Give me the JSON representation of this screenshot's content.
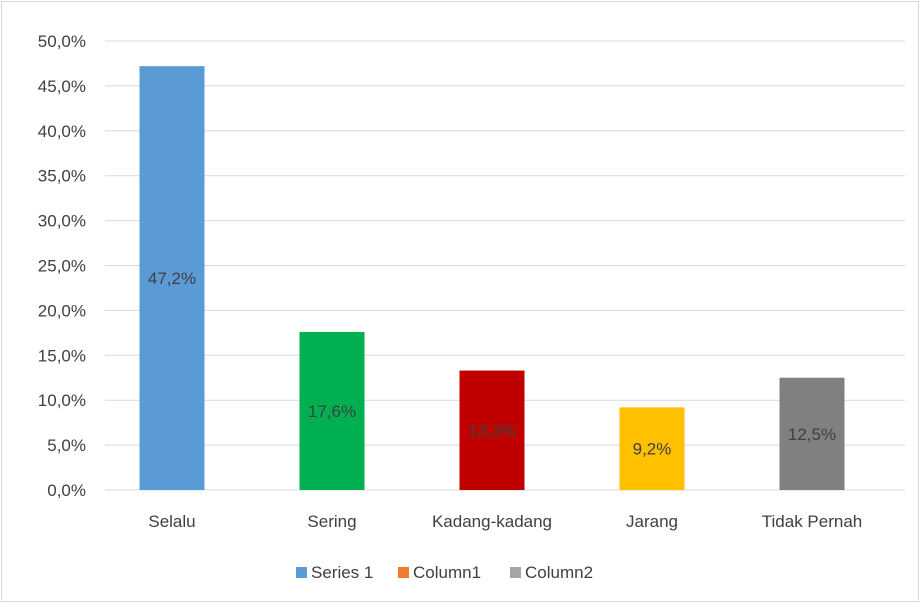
{
  "chart_data": {
    "type": "bar",
    "title": "",
    "xlabel": "",
    "ylabel": "",
    "categories": [
      "Selalu",
      "Sering",
      "Kadang-kadang",
      "Jarang",
      "Tidak Pernah"
    ],
    "values": [
      47.2,
      17.6,
      13.3,
      9.2,
      12.5
    ],
    "data_labels": [
      "47,2%",
      "17,6%",
      "13,3%",
      "9,2%",
      "12,5%"
    ],
    "bar_colors": [
      "#5b9bd5",
      "#00b050",
      "#c00000",
      "#ffc000",
      "#808080"
    ],
    "ylim": [
      0,
      50
    ],
    "ytick_values": [
      0,
      5,
      10,
      15,
      20,
      25,
      30,
      35,
      40,
      45,
      50
    ],
    "ytick_labels": [
      "0,0%",
      "5,0%",
      "10,0%",
      "15,0%",
      "20,0%",
      "25,0%",
      "30,0%",
      "35,0%",
      "40,0%",
      "45,0%",
      "50,0%"
    ],
    "grid": true,
    "legend": {
      "placement": "bottom",
      "entries": [
        {
          "name": "Series 1",
          "color": "#5b9bd5"
        },
        {
          "name": "Column1",
          "color": "#ed7d31"
        },
        {
          "name": "Column2",
          "color": "#a5a5a5"
        }
      ]
    }
  }
}
